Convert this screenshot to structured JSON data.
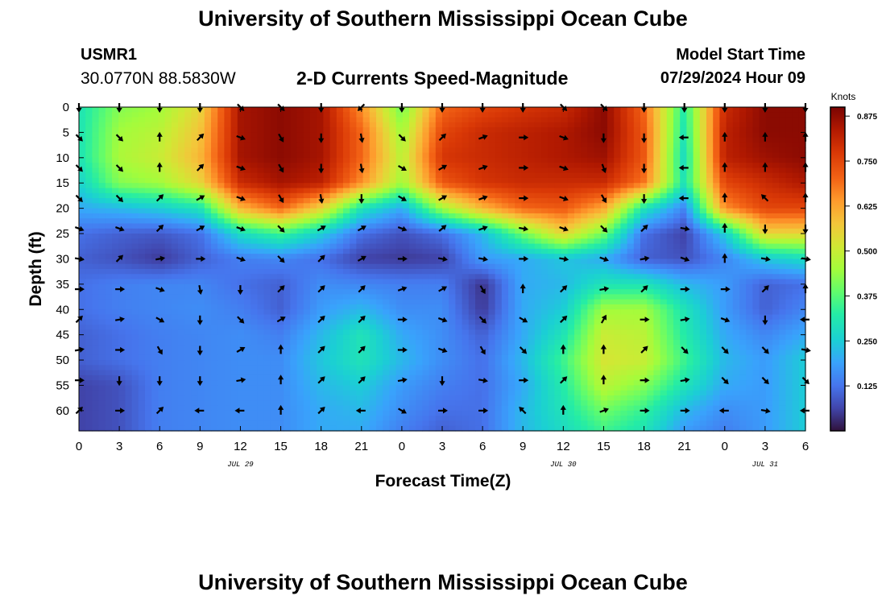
{
  "header": {
    "title": "University of Southern Mississippi Ocean Cube",
    "station_id": "USMR1",
    "coordinates": "30.0770N  88.5830W",
    "subtitle": "2-D Currents Speed-Magnitude",
    "model_start_label": "Model Start Time",
    "model_start_value": "07/29/2024 Hour 09"
  },
  "footer": {
    "title": "University of Southern Mississippi Ocean Cube"
  },
  "chart_data": {
    "type": "heatmap",
    "title": "2-D Currents Speed-Magnitude",
    "xlabel": "Forecast Time(Z)",
    "ylabel": "Depth (ft)",
    "x_tick_labels": [
      "0",
      "3",
      "6",
      "9",
      "12",
      "15",
      "18",
      "21",
      "0",
      "3",
      "6",
      "9",
      "12",
      "15",
      "18",
      "21",
      "0",
      "3",
      "6"
    ],
    "x_range_hours": [
      0,
      54
    ],
    "date_labels": [
      {
        "label": "JUL 29",
        "hour": 12
      },
      {
        "label": "JUL 30",
        "hour": 36
      },
      {
        "label": "JUL 31",
        "hour": 51
      }
    ],
    "y_ticks": [
      0,
      5,
      10,
      15,
      20,
      25,
      30,
      35,
      40,
      45,
      50,
      55,
      60
    ],
    "y_range_ft": [
      0,
      64
    ],
    "y_inverted": true,
    "colorbar": {
      "label": "Knots",
      "ticks": [
        0.125,
        0.25,
        0.375,
        0.5,
        0.625,
        0.75,
        0.875
      ],
      "tick_labels": [
        "0.125",
        "0.250",
        "0.375",
        "0.500",
        "0.625",
        "0.750",
        "0.875"
      ],
      "range": [
        0.0,
        0.9
      ],
      "colormap": "turbo"
    },
    "x_hours": [
      0,
      3,
      6,
      9,
      12,
      15,
      18,
      21,
      24,
      27,
      30,
      33,
      36,
      39,
      42,
      45,
      48,
      51,
      54
    ],
    "depths_ft": [
      0,
      5,
      10,
      15,
      20,
      25,
      30,
      35,
      40,
      45,
      50,
      55,
      60,
      64
    ],
    "speed_knots": [
      [
        0.3,
        0.42,
        0.45,
        0.55,
        0.85,
        0.88,
        0.85,
        0.65,
        0.4,
        0.7,
        0.75,
        0.78,
        0.8,
        0.88,
        0.7,
        0.32,
        0.8,
        0.88,
        0.88
      ],
      [
        0.3,
        0.45,
        0.48,
        0.58,
        0.85,
        0.88,
        0.85,
        0.7,
        0.45,
        0.75,
        0.8,
        0.82,
        0.84,
        0.88,
        0.72,
        0.3,
        0.82,
        0.88,
        0.88
      ],
      [
        0.3,
        0.46,
        0.5,
        0.6,
        0.85,
        0.88,
        0.85,
        0.7,
        0.48,
        0.78,
        0.8,
        0.82,
        0.84,
        0.86,
        0.72,
        0.28,
        0.82,
        0.86,
        0.88
      ],
      [
        0.26,
        0.42,
        0.45,
        0.55,
        0.8,
        0.85,
        0.82,
        0.65,
        0.45,
        0.72,
        0.78,
        0.8,
        0.8,
        0.8,
        0.68,
        0.3,
        0.75,
        0.8,
        0.84
      ],
      [
        0.2,
        0.22,
        0.25,
        0.3,
        0.6,
        0.7,
        0.55,
        0.3,
        0.2,
        0.45,
        0.6,
        0.7,
        0.72,
        0.62,
        0.3,
        0.15,
        0.65,
        0.75,
        0.75
      ],
      [
        0.12,
        0.1,
        0.09,
        0.12,
        0.28,
        0.35,
        0.25,
        0.12,
        0.08,
        0.12,
        0.22,
        0.4,
        0.55,
        0.4,
        0.12,
        0.06,
        0.25,
        0.55,
        0.55
      ],
      [
        0.1,
        0.08,
        0.05,
        0.1,
        0.14,
        0.15,
        0.12,
        0.06,
        0.05,
        0.06,
        0.18,
        0.2,
        0.24,
        0.2,
        0.1,
        0.08,
        0.15,
        0.24,
        0.28
      ],
      [
        0.12,
        0.14,
        0.15,
        0.15,
        0.12,
        0.1,
        0.16,
        0.15,
        0.14,
        0.14,
        0.04,
        0.2,
        0.22,
        0.3,
        0.3,
        0.22,
        0.18,
        0.1,
        0.12
      ],
      [
        0.12,
        0.14,
        0.15,
        0.16,
        0.14,
        0.1,
        0.18,
        0.22,
        0.16,
        0.16,
        0.05,
        0.2,
        0.25,
        0.45,
        0.45,
        0.3,
        0.18,
        0.1,
        0.15
      ],
      [
        0.1,
        0.12,
        0.14,
        0.15,
        0.16,
        0.14,
        0.22,
        0.3,
        0.2,
        0.16,
        0.1,
        0.2,
        0.3,
        0.5,
        0.48,
        0.32,
        0.2,
        0.15,
        0.2
      ],
      [
        0.1,
        0.12,
        0.14,
        0.15,
        0.16,
        0.16,
        0.24,
        0.3,
        0.22,
        0.16,
        0.12,
        0.22,
        0.35,
        0.52,
        0.5,
        0.35,
        0.22,
        0.18,
        0.25
      ],
      [
        0.06,
        0.08,
        0.14,
        0.15,
        0.16,
        0.16,
        0.22,
        0.25,
        0.18,
        0.14,
        0.12,
        0.2,
        0.32,
        0.48,
        0.42,
        0.3,
        0.2,
        0.18,
        0.25
      ],
      [
        0.06,
        0.08,
        0.14,
        0.15,
        0.16,
        0.16,
        0.2,
        0.22,
        0.16,
        0.12,
        0.12,
        0.22,
        0.3,
        0.4,
        0.34,
        0.22,
        0.16,
        0.18,
        0.25
      ],
      [
        0.06,
        0.08,
        0.14,
        0.15,
        0.16,
        0.16,
        0.2,
        0.2,
        0.14,
        0.1,
        0.12,
        0.22,
        0.28,
        0.35,
        0.3,
        0.18,
        0.14,
        0.18,
        0.25
      ]
    ],
    "arrows": {
      "x_hours": [
        0,
        3,
        6,
        9,
        12,
        15,
        18,
        21,
        24,
        27,
        30,
        33,
        36,
        39,
        42,
        45,
        48,
        51,
        54
      ],
      "depths_ft": [
        0,
        6,
        12,
        18,
        24,
        30,
        36,
        42,
        48,
        54,
        60
      ],
      "directions_deg_from_east": [
        [
          -90,
          -90,
          -90,
          -90,
          -45,
          -45,
          -90,
          -135,
          -90,
          -90,
          -90,
          -90,
          -45,
          -45,
          -90,
          -90,
          -90,
          -90,
          -90
        ],
        [
          -45,
          -45,
          90,
          45,
          -20,
          -60,
          -90,
          -80,
          -45,
          45,
          20,
          0,
          -20,
          -90,
          -90,
          180,
          90,
          90,
          90
        ],
        [
          -45,
          -45,
          90,
          45,
          -20,
          -60,
          -90,
          -80,
          -30,
          30,
          20,
          0,
          -20,
          -70,
          -90,
          180,
          90,
          90,
          90
        ],
        [
          -45,
          -45,
          45,
          30,
          -20,
          -60,
          -80,
          -90,
          -30,
          30,
          20,
          0,
          -20,
          -60,
          -90,
          180,
          90,
          135,
          90
        ],
        [
          -20,
          -20,
          45,
          30,
          -20,
          -45,
          30,
          30,
          -20,
          40,
          20,
          -10,
          -20,
          -45,
          45,
          -10,
          90,
          -90,
          -90
        ],
        [
          -10,
          45,
          10,
          0,
          -20,
          -45,
          45,
          30,
          0,
          -10,
          -10,
          0,
          -10,
          -20,
          10,
          -20,
          90,
          -10,
          -10
        ],
        [
          0,
          0,
          -20,
          -80,
          -90,
          45,
          45,
          45,
          20,
          30,
          -60,
          90,
          45,
          10,
          45,
          0,
          0,
          45,
          90
        ],
        [
          45,
          10,
          -30,
          -90,
          -45,
          30,
          45,
          45,
          0,
          -20,
          -45,
          -30,
          45,
          60,
          0,
          10,
          -20,
          -90,
          -180
        ],
        [
          10,
          0,
          -60,
          -90,
          30,
          90,
          45,
          45,
          0,
          -20,
          -60,
          -45,
          90,
          90,
          45,
          -45,
          -45,
          -45,
          -10
        ],
        [
          0,
          -90,
          -90,
          -90,
          10,
          90,
          45,
          45,
          10,
          -90,
          -10,
          0,
          45,
          90,
          0,
          10,
          -45,
          -45,
          -45
        ],
        [
          45,
          0,
          45,
          180,
          180,
          90,
          45,
          -180,
          -30,
          0,
          0,
          135,
          90,
          20,
          0,
          0,
          180,
          -10,
          180
        ]
      ]
    }
  }
}
